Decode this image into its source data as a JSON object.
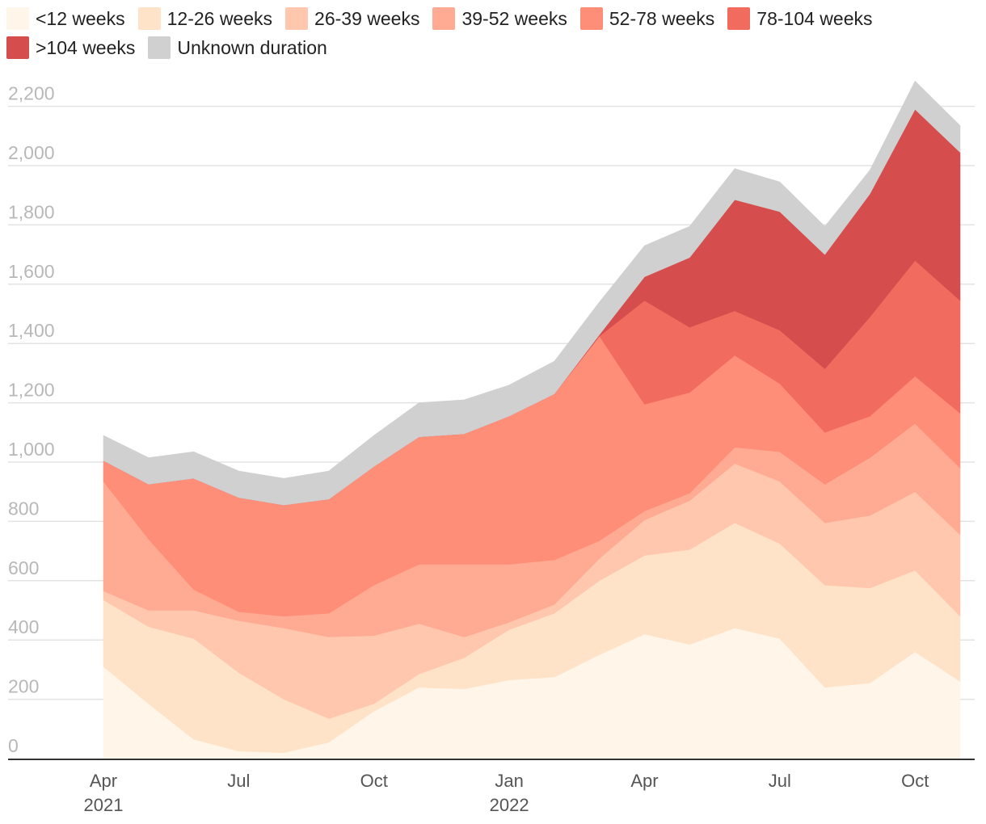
{
  "chart_data": {
    "type": "area",
    "stacked": true,
    "title": "",
    "xlabel": "",
    "ylabel": "",
    "ylim": [
      0,
      2200
    ],
    "yticks": [
      0,
      200,
      400,
      600,
      800,
      1000,
      1200,
      1400,
      1600,
      1800,
      2000,
      2200
    ],
    "ytick_labels": [
      "0",
      "200",
      "400",
      "600",
      "800",
      "1,000",
      "1,200",
      "1,400",
      "1,600",
      "1,800",
      "2,000",
      "2,200"
    ],
    "grid": true,
    "legend_position": "top-left",
    "x": [
      "2021-04",
      "2021-05",
      "2021-06",
      "2021-07",
      "2021-08",
      "2021-09",
      "2021-10",
      "2021-11",
      "2021-12",
      "2022-01",
      "2022-02",
      "2022-03",
      "2022-04",
      "2022-05",
      "2022-06",
      "2022-07",
      "2022-08",
      "2022-09",
      "2022-10",
      "2022-11"
    ],
    "xticks": [
      {
        "month": "2021-04",
        "label": "Apr",
        "year": "2021"
      },
      {
        "month": "2021-07",
        "label": "Jul",
        "year": ""
      },
      {
        "month": "2021-10",
        "label": "Oct",
        "year": ""
      },
      {
        "month": "2022-01",
        "label": "Jan",
        "year": "2022"
      },
      {
        "month": "2022-04",
        "label": "Apr",
        "year": ""
      },
      {
        "month": "2022-07",
        "label": "Jul",
        "year": ""
      },
      {
        "month": "2022-10",
        "label": "Oct",
        "year": ""
      }
    ],
    "series": [
      {
        "name": "<12 weeks",
        "color": "#fff5e9",
        "values": [
          310,
          185,
          65,
          25,
          20,
          55,
          160,
          240,
          235,
          265,
          275,
          350,
          420,
          385,
          440,
          405,
          240,
          255,
          360,
          260
        ]
      },
      {
        "name": "12-26 weeks",
        "color": "#ffe3c9",
        "values": [
          225,
          260,
          340,
          265,
          180,
          80,
          25,
          45,
          105,
          170,
          215,
          250,
          265,
          320,
          355,
          320,
          345,
          320,
          275,
          220
        ]
      },
      {
        "name": "26-39 weeks",
        "color": "#ffc8ae",
        "values": [
          30,
          55,
          95,
          175,
          240,
          275,
          230,
          170,
          70,
          25,
          30,
          75,
          120,
          165,
          200,
          210,
          210,
          245,
          265,
          275
        ]
      },
      {
        "name": "39-52 weeks",
        "color": "#ffab94",
        "values": [
          370,
          240,
          70,
          30,
          40,
          80,
          170,
          200,
          245,
          195,
          150,
          60,
          30,
          25,
          55,
          100,
          130,
          195,
          230,
          225
        ]
      },
      {
        "name": "52-78 weeks",
        "color": "#ff8e78",
        "values": [
          70,
          185,
          375,
          385,
          375,
          385,
          400,
          430,
          440,
          500,
          560,
          690,
          360,
          340,
          310,
          230,
          175,
          140,
          160,
          185
        ]
      },
      {
        "name": "78-104 weeks",
        "color": "#f26b5f",
        "values": [
          0,
          0,
          0,
          0,
          0,
          0,
          0,
          0,
          0,
          0,
          0,
          0,
          350,
          220,
          150,
          180,
          215,
          335,
          390,
          380
        ]
      },
      {
        "name": ">104 weeks",
        "color": "#d54d4c",
        "values": [
          0,
          0,
          0,
          0,
          0,
          0,
          0,
          0,
          0,
          0,
          0,
          5,
          80,
          235,
          375,
          400,
          385,
          415,
          510,
          500
        ]
      },
      {
        "name": "Unknown duration",
        "color": "#d0d0d0",
        "values": [
          85,
          90,
          90,
          90,
          90,
          95,
          105,
          115,
          115,
          105,
          110,
          110,
          105,
          105,
          105,
          100,
          95,
          80,
          95,
          90
        ]
      }
    ]
  }
}
